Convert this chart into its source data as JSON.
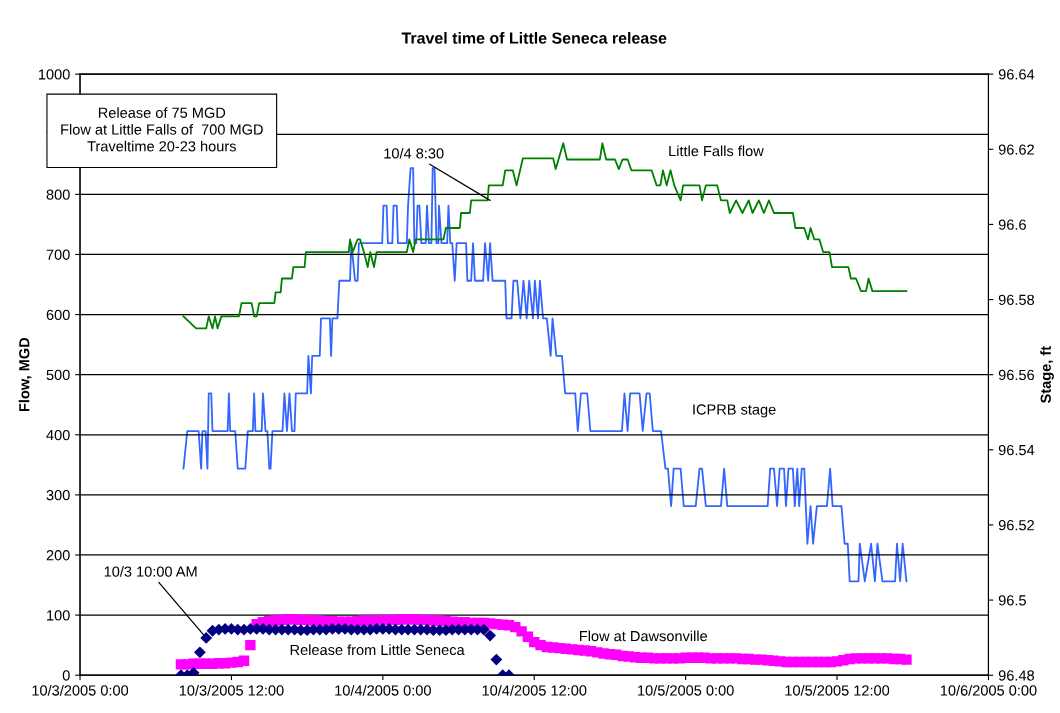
{
  "chart_data": {
    "type": "line",
    "title": "Travel time of Little Seneca release",
    "ylabel": "Flow, MGD",
    "y2label": "Stage, ft",
    "xlim": [
      "2005-10-03T00:00",
      "2005-10-06T00:00"
    ],
    "xticks": [
      {
        "value": "2005-10-03T00:00",
        "label": "10/3/2005 0:00"
      },
      {
        "value": "2005-10-03T12:00",
        "label": "10/3/2005 12:00"
      },
      {
        "value": "2005-10-04T00:00",
        "label": "10/4/2005 0:00"
      },
      {
        "value": "2005-10-04T12:00",
        "label": "10/4/2005 12:00"
      },
      {
        "value": "2005-10-05T00:00",
        "label": "10/5/2005 0:00"
      },
      {
        "value": "2005-10-05T12:00",
        "label": "10/5/2005 12:00"
      },
      {
        "value": "2005-10-06T00:00",
        "label": "10/6/2005 0:00"
      }
    ],
    "ylim": [
      0,
      1000
    ],
    "yticks": [
      0,
      100,
      200,
      300,
      400,
      500,
      600,
      700,
      800,
      900,
      1000
    ],
    "y2lim": [
      96.48,
      96.64
    ],
    "y2ticks": [
      96.48,
      96.5,
      96.52,
      96.54,
      96.56,
      96.58,
      96.6,
      96.62,
      96.64
    ],
    "grid": "y",
    "annotations": [
      "Release of 75 MGD\nFlow at Little Falls of  700 MGD\nTraveltime 20-23 hours",
      {
        "text": "10/4 8:30",
        "x": "2005-10-04T08:30",
        "y": 790
      },
      {
        "text": "10/3 10:00 AM",
        "x": "2005-10-03T10:00",
        "y": 62
      }
    ],
    "series": [
      {
        "name": "Little Falls flow",
        "color": "#008000",
        "x": [
          "2005-10-03T08:12",
          "2005-10-03T09:12",
          "2005-10-03T10:00",
          "2005-10-03T10:12",
          "2005-10-03T10:30",
          "2005-10-03T10:42",
          "2005-10-03T10:54",
          "2005-10-03T11:12",
          "2005-10-03T12:36",
          "2005-10-03T12:48",
          "2005-10-03T13:36",
          "2005-10-03T13:48",
          "2005-10-03T14:00",
          "2005-10-03T14:12",
          "2005-10-03T15:24",
          "2005-10-03T15:30",
          "2005-10-03T15:54",
          "2005-10-03T16:00",
          "2005-10-03T16:48",
          "2005-10-03T16:54",
          "2005-10-03T17:48",
          "2005-10-03T17:54",
          "2005-10-03T21:18",
          "2005-10-03T21:24",
          "2005-10-03T21:36",
          "2005-10-03T22:00",
          "2005-10-03T22:12",
          "2005-10-03T22:30",
          "2005-10-03T22:48",
          "2005-10-03T23:00",
          "2005-10-03T23:18",
          "2005-10-03T23:30",
          "2005-10-04T01:54",
          "2005-10-04T02:06",
          "2005-10-04T02:24",
          "2005-10-04T02:36",
          "2005-10-04T04:48",
          "2005-10-04T05:00",
          "2005-10-04T06:06",
          "2005-10-04T06:12",
          "2005-10-04T06:54",
          "2005-10-04T07:00",
          "2005-10-04T08:18",
          "2005-10-04T08:24",
          "2005-10-04T09:30",
          "2005-10-04T09:42",
          "2005-10-04T10:18",
          "2005-10-04T10:36",
          "2005-10-04T11:06",
          "2005-10-04T13:30",
          "2005-10-04T13:42",
          "2005-10-04T14:18",
          "2005-10-04T14:36",
          "2005-10-04T17:12",
          "2005-10-04T17:24",
          "2005-10-04T17:42",
          "2005-10-04T18:24",
          "2005-10-04T18:42",
          "2005-10-04T19:00",
          "2005-10-04T19:24",
          "2005-10-04T19:42",
          "2005-10-04T21:18",
          "2005-10-04T21:42",
          "2005-10-04T22:00",
          "2005-10-04T22:12",
          "2005-10-04T22:30",
          "2005-10-04T22:48",
          "2005-10-04T23:06",
          "2005-10-04T23:36",
          "2005-10-04T23:48",
          "2005-10-05T01:06",
          "2005-10-05T01:18",
          "2005-10-05T01:36",
          "2005-10-05T02:30",
          "2005-10-05T02:48",
          "2005-10-05T03:18",
          "2005-10-05T03:30",
          "2005-10-05T04:00",
          "2005-10-05T04:30",
          "2005-10-05T05:00",
          "2005-10-05T05:18",
          "2005-10-05T05:48",
          "2005-10-05T06:12",
          "2005-10-05T06:36",
          "2005-10-05T07:00",
          "2005-10-05T08:30",
          "2005-10-05T08:42",
          "2005-10-05T09:24",
          "2005-10-05T09:42",
          "2005-10-05T09:54",
          "2005-10-05T10:12",
          "2005-10-05T10:36",
          "2005-10-05T10:54",
          "2005-10-05T11:24",
          "2005-10-05T11:36",
          "2005-10-05T12:54",
          "2005-10-05T13:06",
          "2005-10-05T13:30",
          "2005-10-05T13:54",
          "2005-10-05T14:18",
          "2005-10-05T14:30",
          "2005-10-05T14:48",
          "2005-10-05T17:30"
        ],
        "values": [
          597,
          577,
          577,
          597,
          577,
          597,
          577,
          597,
          597,
          619,
          619,
          597,
          597,
          619,
          619,
          637,
          637,
          660,
          660,
          679,
          679,
          704,
          704,
          725,
          704,
          725,
          725,
          704,
          679,
          704,
          679,
          704,
          704,
          725,
          704,
          725,
          725,
          744,
          744,
          769,
          769,
          790,
          790,
          815,
          815,
          840,
          840,
          815,
          860,
          860,
          842,
          885,
          858,
          858,
          885,
          858,
          858,
          842,
          858,
          858,
          840,
          840,
          815,
          815,
          840,
          815,
          840,
          815,
          790,
          815,
          815,
          790,
          815,
          815,
          790,
          790,
          769,
          790,
          769,
          790,
          769,
          790,
          769,
          790,
          769,
          769,
          744,
          744,
          725,
          744,
          725,
          725,
          704,
          704,
          679,
          679,
          660,
          660,
          639,
          639,
          660,
          639,
          639
        ]
      },
      {
        "name": "ICPRB stage",
        "axis": "y2",
        "color": "#3366ff",
        "x": [
          "2005-10-03T08:12",
          "2005-10-03T08:30",
          "2005-10-03T09:24",
          "2005-10-03T09:36",
          "2005-10-03T09:42",
          "2005-10-03T09:57",
          "2005-10-03T10:06",
          "2005-10-03T10:12",
          "2005-10-03T10:24",
          "2005-10-03T10:30",
          "2005-10-03T11:42",
          "2005-10-03T11:48",
          "2005-10-03T11:54",
          "2005-10-03T12:18",
          "2005-10-03T12:30",
          "2005-10-03T13:06",
          "2005-10-03T13:18",
          "2005-10-03T13:42",
          "2005-10-03T13:48",
          "2005-10-03T13:54",
          "2005-10-03T14:24",
          "2005-10-03T14:30",
          "2005-10-03T14:42",
          "2005-10-03T14:51",
          "2005-10-03T15:00",
          "2005-10-03T15:06",
          "2005-10-03T15:15",
          "2005-10-03T16:03",
          "2005-10-03T16:12",
          "2005-10-03T16:24",
          "2005-10-03T16:36",
          "2005-10-03T16:48",
          "2005-10-03T17:00",
          "2005-10-03T17:06",
          "2005-10-03T18:00",
          "2005-10-03T18:06",
          "2005-10-03T18:18",
          "2005-10-03T18:24",
          "2005-10-03T19:00",
          "2005-10-03T19:06",
          "2005-10-03T19:48",
          "2005-10-03T19:54",
          "2005-10-03T20:00",
          "2005-10-03T20:24",
          "2005-10-03T20:33",
          "2005-10-03T21:24",
          "2005-10-03T21:30",
          "2005-10-03T21:48",
          "2005-10-03T22:00",
          "2005-10-03T22:06",
          "2005-10-03T23:57",
          "2005-10-04T00:03",
          "2005-10-04T00:18",
          "2005-10-04T00:24",
          "2005-10-04T00:45",
          "2005-10-04T00:51",
          "2005-10-04T01:06",
          "2005-10-04T01:12",
          "2005-10-04T01:54",
          "2005-10-04T02:00",
          "2005-10-04T02:12",
          "2005-10-04T02:24",
          "2005-10-04T02:30",
          "2005-10-04T02:39",
          "2005-10-04T02:45",
          "2005-10-04T02:54",
          "2005-10-04T03:03",
          "2005-10-04T03:24",
          "2005-10-04T03:30",
          "2005-10-04T03:39",
          "2005-10-04T03:51",
          "2005-10-04T03:57",
          "2005-10-04T04:06",
          "2005-10-04T04:15",
          "2005-10-04T04:24",
          "2005-10-04T04:27",
          "2005-10-04T04:39",
          "2005-10-04T05:06",
          "2005-10-04T05:12",
          "2005-10-04T05:21",
          "2005-10-04T05:30",
          "2005-10-04T05:42",
          "2005-10-04T05:51",
          "2005-10-04T06:36",
          "2005-10-04T06:42",
          "2005-10-04T07:00",
          "2005-10-04T07:09",
          "2005-10-04T07:18",
          "2005-10-04T07:57",
          "2005-10-04T08:06",
          "2005-10-04T08:21",
          "2005-10-04T08:30",
          "2005-10-04T08:42",
          "2005-10-04T09:42",
          "2005-10-04T09:48",
          "2005-10-04T10:12",
          "2005-10-04T10:21",
          "2005-10-04T10:39",
          "2005-10-04T10:54",
          "2005-10-04T11:09",
          "2005-10-04T11:24",
          "2005-10-04T11:36",
          "2005-10-04T11:54",
          "2005-10-04T12:03",
          "2005-10-04T12:18",
          "2005-10-04T12:27",
          "2005-10-04T12:42",
          "2005-10-04T13:00",
          "2005-10-04T13:18",
          "2005-10-04T13:27",
          "2005-10-04T13:45",
          "2005-10-04T14:12",
          "2005-10-04T14:27",
          "2005-10-04T15:15",
          "2005-10-04T15:27",
          "2005-10-04T15:42",
          "2005-10-04T16:12",
          "2005-10-04T16:27",
          "2005-10-04T18:57",
          "2005-10-04T19:09",
          "2005-10-04T19:24",
          "2005-10-04T19:36",
          "2005-10-04T20:21",
          "2005-10-04T20:36",
          "2005-10-04T20:54",
          "2005-10-04T21:09",
          "2005-10-04T21:24",
          "2005-10-04T22:03",
          "2005-10-04T22:24",
          "2005-10-04T22:36",
          "2005-10-04T22:51",
          "2005-10-04T23:03",
          "2005-10-04T23:36",
          "2005-10-04T23:51",
          "2005-10-05T00:48",
          "2005-10-05T01:06",
          "2005-10-05T01:18",
          "2005-10-05T01:36",
          "2005-10-05T02:48",
          "2005-10-05T03:03",
          "2005-10-05T03:18",
          "2005-10-05T06:30",
          "2005-10-05T06:42",
          "2005-10-05T07:00",
          "2005-10-05T07:15",
          "2005-10-05T07:27",
          "2005-10-05T07:48",
          "2005-10-05T07:57",
          "2005-10-05T08:09",
          "2005-10-05T08:30",
          "2005-10-05T08:39",
          "2005-10-05T08:51",
          "2005-10-05T09:00",
          "2005-10-05T09:12",
          "2005-10-05T09:24",
          "2005-10-05T09:39",
          "2005-10-05T09:54",
          "2005-10-05T10:06",
          "2005-10-05T10:24",
          "2005-10-05T11:12",
          "2005-10-05T11:27",
          "2005-10-05T11:39",
          "2005-10-05T12:21",
          "2005-10-05T12:36",
          "2005-10-05T12:51",
          "2005-10-05T13:00",
          "2005-10-05T13:42",
          "2005-10-05T13:48",
          "2005-10-05T14:12",
          "2005-10-05T14:42",
          "2005-10-05T15:00",
          "2005-10-05T15:12",
          "2005-10-05T15:36",
          "2005-10-05T16:36",
          "2005-10-05T16:45",
          "2005-10-05T17:00",
          "2005-10-05T17:12",
          "2005-10-05T17:30"
        ],
        "values": [
          96.535,
          96.545,
          96.545,
          96.535,
          96.545,
          96.545,
          96.535,
          96.555,
          96.555,
          96.545,
          96.545,
          96.555,
          96.545,
          96.545,
          96.535,
          96.535,
          96.545,
          96.545,
          96.555,
          96.545,
          96.545,
          96.555,
          96.545,
          96.545,
          96.535,
          96.535,
          96.545,
          96.545,
          96.555,
          96.545,
          96.555,
          96.545,
          96.545,
          96.555,
          96.555,
          96.565,
          96.555,
          96.565,
          96.565,
          96.575,
          96.575,
          96.565,
          96.575,
          96.575,
          96.585,
          96.585,
          96.595,
          96.585,
          96.585,
          96.595,
          96.595,
          96.605,
          96.605,
          96.595,
          96.595,
          96.605,
          96.605,
          96.595,
          96.595,
          96.605,
          96.615,
          96.615,
          96.595,
          96.595,
          96.605,
          96.605,
          96.595,
          96.595,
          96.605,
          96.595,
          96.595,
          96.615,
          96.615,
          96.595,
          96.595,
          96.605,
          96.595,
          96.595,
          96.605,
          96.595,
          96.595,
          96.585,
          96.595,
          96.595,
          96.585,
          96.585,
          96.595,
          96.585,
          96.585,
          96.595,
          96.585,
          96.595,
          96.585,
          96.585,
          96.575,
          96.575,
          96.585,
          96.585,
          96.575,
          96.585,
          96.575,
          96.585,
          96.575,
          96.585,
          96.575,
          96.585,
          96.575,
          96.575,
          96.565,
          96.575,
          96.565,
          96.565,
          96.555,
          96.555,
          96.545,
          96.555,
          96.555,
          96.545,
          96.545,
          96.555,
          96.545,
          96.555,
          96.555,
          96.545,
          96.555,
          96.555,
          96.545,
          96.545,
          96.535,
          96.535,
          96.525,
          96.535,
          96.535,
          96.525,
          96.525,
          96.535,
          96.535,
          96.525,
          96.525,
          96.535,
          96.525,
          96.525,
          96.535,
          96.535,
          96.525,
          96.535,
          96.535,
          96.525,
          96.535,
          96.535,
          96.525,
          96.535,
          96.525,
          96.535,
          96.535,
          96.515,
          96.525,
          96.515,
          96.525,
          96.525,
          96.535,
          96.525,
          96.525,
          96.515,
          96.515,
          96.505,
          96.505,
          96.515,
          96.505,
          96.515,
          96.505,
          96.515,
          96.505,
          96.505,
          96.515,
          96.505,
          96.515,
          96.505
        ]
      },
      {
        "name": "Release from Little Seneca",
        "type": "scatter",
        "color": "#000080",
        "marker": "diamond",
        "x": [
          "2005-10-03T08:00",
          "2005-10-03T08:30",
          "2005-10-03T09:00",
          "2005-10-03T09:30",
          "2005-10-03T10:00",
          "2005-10-03T10:30",
          "2005-10-03T11:00",
          "2005-10-03T11:30",
          "2005-10-03T12:00",
          "2005-10-03T12:30",
          "2005-10-03T13:00",
          "2005-10-03T13:30",
          "2005-10-03T14:00",
          "2005-10-03T14:30",
          "2005-10-03T15:00",
          "2005-10-03T15:30",
          "2005-10-03T16:00",
          "2005-10-03T16:30",
          "2005-10-03T17:00",
          "2005-10-03T17:30",
          "2005-10-03T18:00",
          "2005-10-03T18:30",
          "2005-10-03T19:00",
          "2005-10-03T19:30",
          "2005-10-03T20:00",
          "2005-10-03T20:30",
          "2005-10-03T21:00",
          "2005-10-03T21:30",
          "2005-10-03T22:00",
          "2005-10-03T22:30",
          "2005-10-03T23:00",
          "2005-10-03T23:30",
          "2005-10-04T00:00",
          "2005-10-04T00:30",
          "2005-10-04T01:00",
          "2005-10-04T01:30",
          "2005-10-04T02:00",
          "2005-10-04T02:30",
          "2005-10-04T03:00",
          "2005-10-04T03:30",
          "2005-10-04T04:00",
          "2005-10-04T04:30",
          "2005-10-04T05:00",
          "2005-10-04T05:30",
          "2005-10-04T06:00",
          "2005-10-04T06:30",
          "2005-10-04T07:00",
          "2005-10-04T07:30",
          "2005-10-04T08:00",
          "2005-10-04T08:30",
          "2005-10-04T09:00",
          "2005-10-04T09:30",
          "2005-10-04T10:00"
        ],
        "values": [
          0,
          0,
          4,
          38,
          62,
          74,
          76,
          77,
          77,
          76,
          76,
          77,
          77,
          77,
          76,
          76,
          76,
          76,
          76,
          75,
          75,
          76,
          76,
          76,
          77,
          77,
          77,
          76,
          76,
          76,
          76,
          77,
          77,
          77,
          76,
          76,
          76,
          76,
          76,
          76,
          75,
          75,
          75,
          76,
          76,
          76,
          76,
          76,
          76,
          66,
          26,
          0,
          0
        ]
      },
      {
        "name": "Flow at Dawsonville",
        "type": "scatter",
        "color": "#ff00ff",
        "marker": "square",
        "x": [
          "2005-10-03T08:00",
          "2005-10-03T08:30",
          "2005-10-03T09:00",
          "2005-10-03T09:30",
          "2005-10-03T10:00",
          "2005-10-03T10:30",
          "2005-10-03T11:00",
          "2005-10-03T11:30",
          "2005-10-03T12:00",
          "2005-10-03T12:30",
          "2005-10-03T13:00",
          "2005-10-03T13:30",
          "2005-10-03T14:00",
          "2005-10-03T14:30",
          "2005-10-03T15:00",
          "2005-10-03T15:30",
          "2005-10-03T16:00",
          "2005-10-03T16:30",
          "2005-10-03T17:00",
          "2005-10-03T17:30",
          "2005-10-03T18:00",
          "2005-10-03T18:30",
          "2005-10-03T19:00",
          "2005-10-03T19:30",
          "2005-10-03T20:00",
          "2005-10-03T20:30",
          "2005-10-03T21:00",
          "2005-10-03T21:30",
          "2005-10-03T22:00",
          "2005-10-03T22:30",
          "2005-10-03T23:00",
          "2005-10-03T23:30",
          "2005-10-04T00:00",
          "2005-10-04T00:30",
          "2005-10-04T01:00",
          "2005-10-04T01:30",
          "2005-10-04T02:00",
          "2005-10-04T02:30",
          "2005-10-04T03:00",
          "2005-10-04T03:30",
          "2005-10-04T04:00",
          "2005-10-04T04:30",
          "2005-10-04T05:00",
          "2005-10-04T05:30",
          "2005-10-04T06:00",
          "2005-10-04T06:30",
          "2005-10-04T07:00",
          "2005-10-04T07:30",
          "2005-10-04T08:00",
          "2005-10-04T08:30",
          "2005-10-04T09:00",
          "2005-10-04T09:30",
          "2005-10-04T10:00",
          "2005-10-04T10:30",
          "2005-10-04T11:00",
          "2005-10-04T11:30",
          "2005-10-04T12:00",
          "2005-10-04T12:30",
          "2005-10-04T13:00",
          "2005-10-04T13:30",
          "2005-10-04T14:00",
          "2005-10-04T14:30",
          "2005-10-04T15:00",
          "2005-10-04T15:30",
          "2005-10-04T16:00",
          "2005-10-04T16:30",
          "2005-10-04T17:00",
          "2005-10-04T17:30",
          "2005-10-04T18:00",
          "2005-10-04T18:30",
          "2005-10-04T19:00",
          "2005-10-04T19:30",
          "2005-10-04T20:00",
          "2005-10-04T20:30",
          "2005-10-04T21:00",
          "2005-10-04T21:30",
          "2005-10-04T22:00",
          "2005-10-04T22:30",
          "2005-10-04T23:00",
          "2005-10-04T23:30",
          "2005-10-05T00:00",
          "2005-10-05T00:30",
          "2005-10-05T01:00",
          "2005-10-05T01:30",
          "2005-10-05T02:00",
          "2005-10-05T02:30",
          "2005-10-05T03:00",
          "2005-10-05T03:30",
          "2005-10-05T04:00",
          "2005-10-05T04:30",
          "2005-10-05T05:00",
          "2005-10-05T05:30",
          "2005-10-05T06:00",
          "2005-10-05T06:30",
          "2005-10-05T07:00",
          "2005-10-05T07:30",
          "2005-10-05T08:00",
          "2005-10-05T08:30",
          "2005-10-05T09:00",
          "2005-10-05T09:30",
          "2005-10-05T10:00",
          "2005-10-05T10:30",
          "2005-10-05T11:00",
          "2005-10-05T11:30",
          "2005-10-05T12:00",
          "2005-10-05T12:30",
          "2005-10-05T13:00",
          "2005-10-05T13:30",
          "2005-10-05T14:00",
          "2005-10-05T14:30",
          "2005-10-05T15:00",
          "2005-10-05T15:30",
          "2005-10-05T16:00",
          "2005-10-05T16:30",
          "2005-10-05T17:00",
          "2005-10-05T17:30"
        ],
        "values": [
          18,
          18,
          19,
          19,
          19,
          19,
          20,
          20,
          21,
          22,
          24,
          50,
          85,
          88,
          90,
          91,
          92,
          93,
          93,
          92,
          92,
          91,
          91,
          90,
          90,
          89,
          89,
          89,
          90,
          91,
          91,
          91,
          92,
          92,
          92,
          93,
          93,
          93,
          92,
          92,
          91,
          91,
          90,
          89,
          88,
          88,
          87,
          87,
          87,
          86,
          85,
          84,
          83,
          80,
          73,
          64,
          55,
          50,
          47,
          46,
          45,
          44,
          43,
          42,
          41,
          40,
          38,
          36,
          35,
          34,
          32,
          31,
          30,
          29,
          29,
          28,
          28,
          28,
          28,
          28,
          29,
          29,
          29,
          29,
          28,
          28,
          28,
          28,
          28,
          27,
          27,
          26,
          26,
          25,
          24,
          23,
          22,
          22,
          22,
          22,
          22,
          22,
          22,
          22,
          23,
          25,
          27,
          28,
          28,
          28,
          28,
          28,
          28,
          27,
          27,
          26
        ]
      }
    ]
  }
}
